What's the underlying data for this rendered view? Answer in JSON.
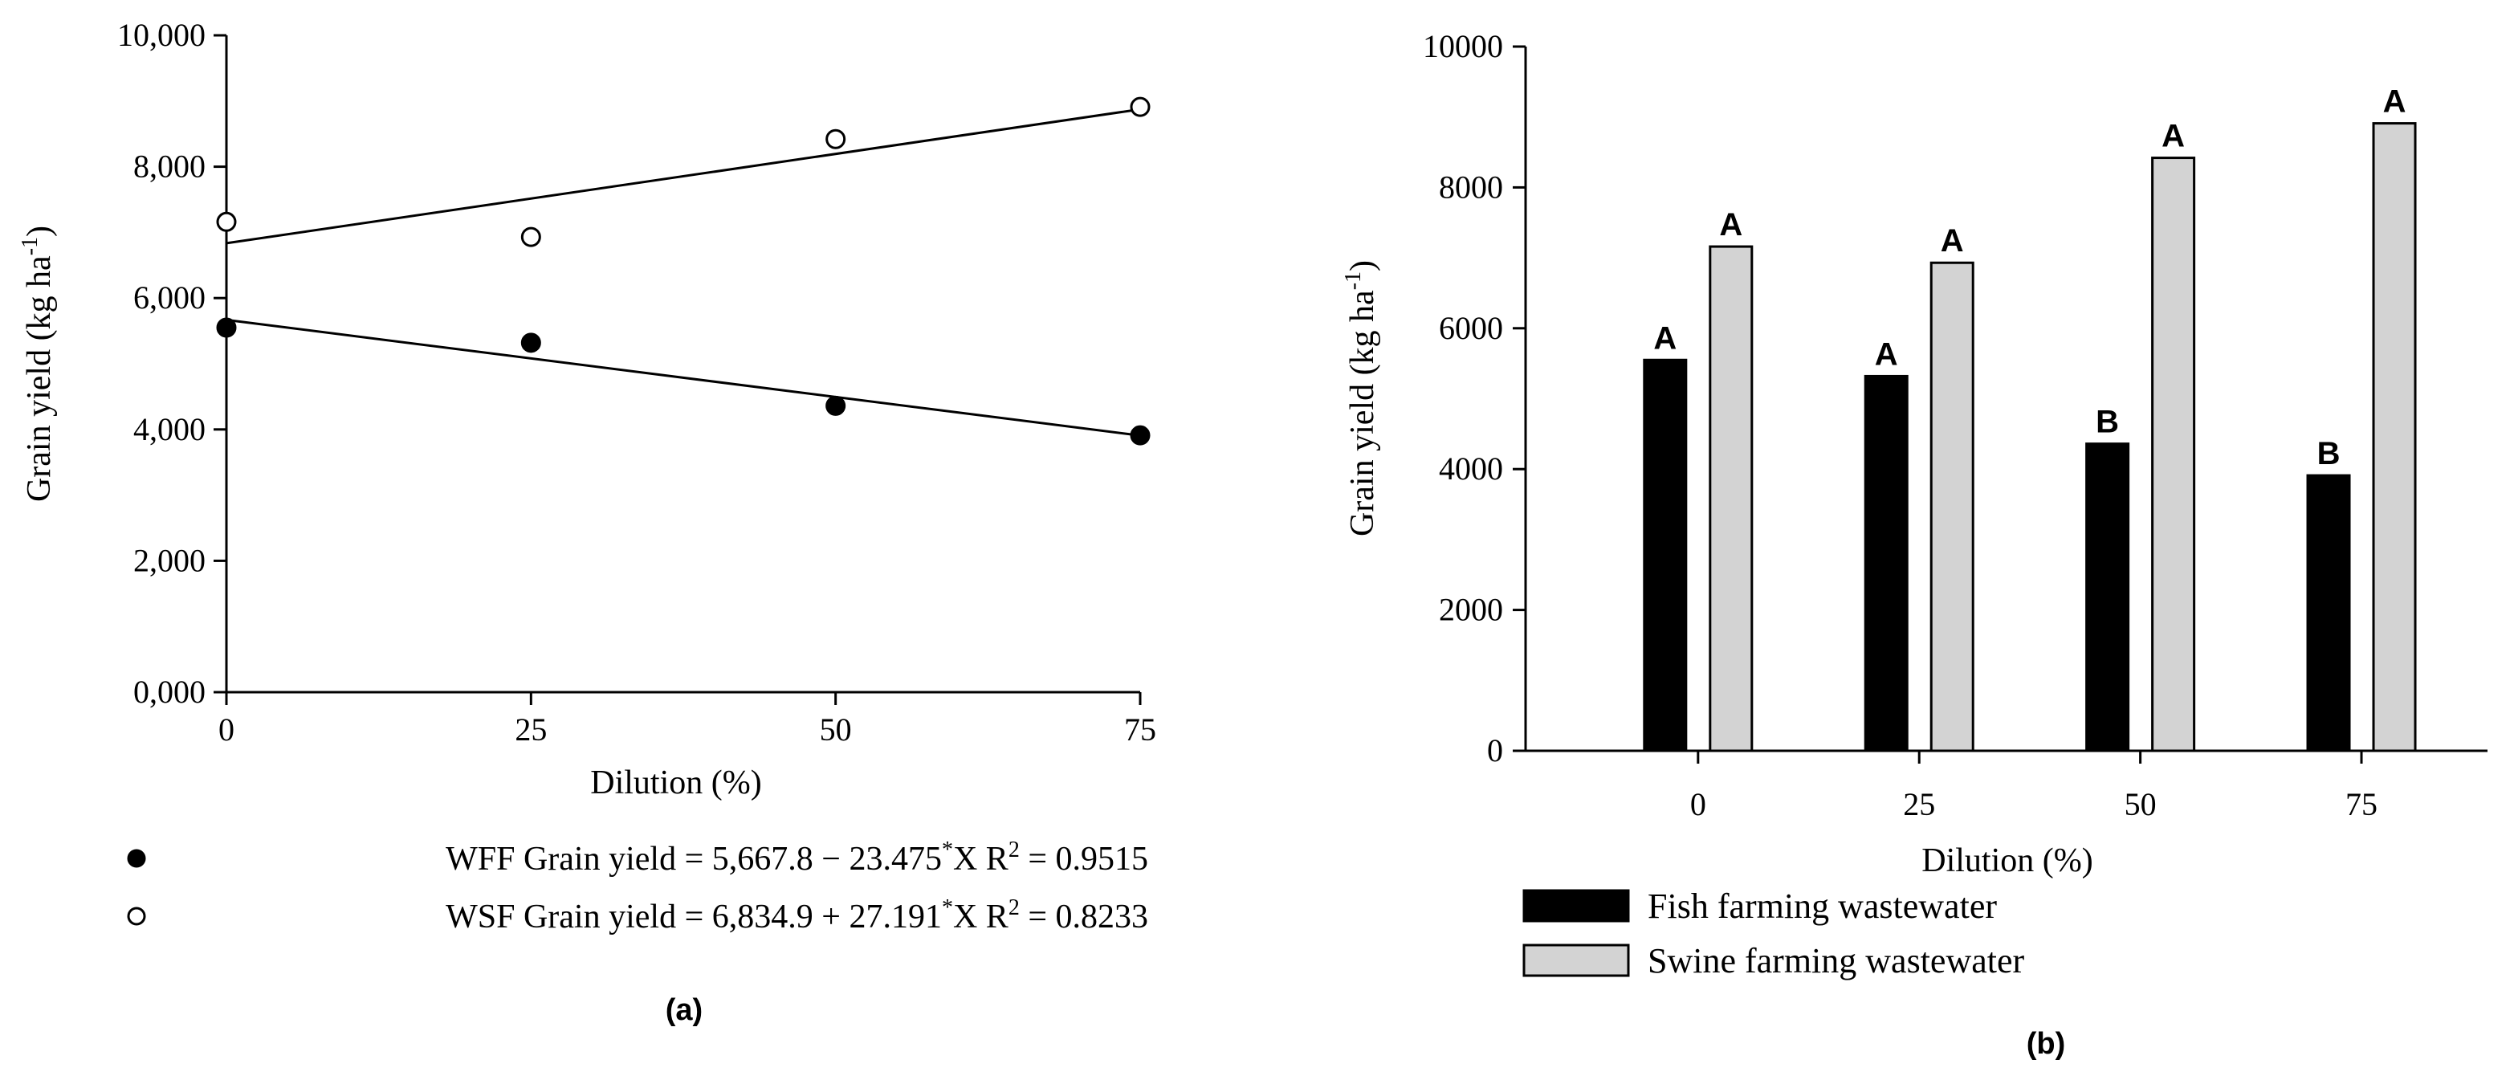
{
  "chart_data": [
    {
      "type": "scatter",
      "panel_label": "(a)",
      "xlabel": "Dilution (%)",
      "ylabel": "Grain yield (kg ha",
      "ylabel_superscript": "-1",
      "ylabel_close": ")",
      "xlim": [
        0,
        75
      ],
      "ylim": [
        0,
        10000
      ],
      "x_ticks": [
        0,
        25,
        50,
        75
      ],
      "x_tick_labels": [
        "0",
        "25",
        "50",
        "75"
      ],
      "y_ticks": [
        0,
        2000,
        4000,
        6000,
        8000,
        10000
      ],
      "y_tick_labels": [
        "0,000",
        "2,000",
        "4,000",
        "6,000",
        "8,000",
        "10,000"
      ],
      "series": [
        {
          "name": "WFF",
          "marker": "filled-circle",
          "x": [
            0,
            25,
            50,
            75
          ],
          "y": [
            5550,
            5320,
            4360,
            3910
          ],
          "fit": {
            "intercept": 5667.8,
            "slope": -23.475
          },
          "equation": {
            "lhs": "WFF Grain yield = 5,667.8",
            "op": "−",
            "coef": "23.475",
            "star": "*",
            "var": "X",
            "r2_label": "R",
            "r2_sup": "2",
            "r2_value": " = 0.9515"
          }
        },
        {
          "name": "WSF",
          "marker": "open-circle",
          "x": [
            0,
            25,
            50,
            75
          ],
          "y": [
            7160,
            6930,
            8420,
            8910
          ],
          "fit": {
            "intercept": 6834.9,
            "slope": 27.191
          },
          "equation": {
            "lhs": "WSF Grain yield = 6,834.9",
            "op": "+",
            "coef": "27.191",
            "star": "*",
            "var": "X",
            "r2_label": "R",
            "r2_sup": "2",
            "r2_value": " = 0.8233"
          }
        }
      ]
    },
    {
      "type": "bar",
      "panel_label": "(b)",
      "xlabel": "Dilution (%)",
      "ylabel": "Grain yield (kg ha",
      "ylabel_superscript": "-1",
      "ylabel_close": ")",
      "ylim": [
        0,
        10000
      ],
      "categories": [
        "0",
        "25",
        "50",
        "75"
      ],
      "y_ticks": [
        0,
        2000,
        4000,
        6000,
        8000,
        10000
      ],
      "y_tick_labels": [
        "0",
        "2000",
        "4000",
        "6000",
        "8000",
        "10000"
      ],
      "series": [
        {
          "name": "Fish farming wastewater",
          "color": "#000000",
          "values": [
            5550,
            5320,
            4360,
            3910
          ],
          "letters": [
            "A",
            "A",
            "B",
            "B"
          ]
        },
        {
          "name": "Swine farming wastewater",
          "color": "#d3d3d3",
          "values": [
            7160,
            6930,
            8420,
            8910
          ],
          "letters": [
            "A",
            "A",
            "A",
            "A"
          ]
        }
      ]
    }
  ]
}
